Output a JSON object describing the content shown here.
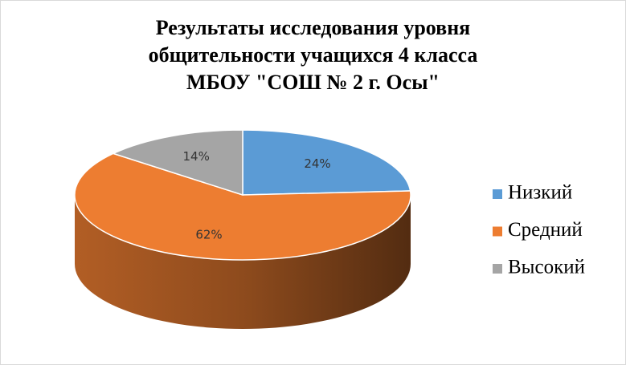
{
  "chart_data": {
    "type": "pie3d",
    "title": "Результаты исследования уровня\nобщительности учащихся 4 класса\nМБОУ \"СОШ № 2 г. Осы\"",
    "categories": [
      "Низкий",
      "Средний",
      "Высокий"
    ],
    "values": [
      24,
      62,
      14
    ],
    "value_labels": [
      "24%",
      "62%",
      "14%"
    ],
    "colors": [
      "#5b9bd5",
      "#ed7d31",
      "#a5a5a5"
    ],
    "legend": "right"
  }
}
